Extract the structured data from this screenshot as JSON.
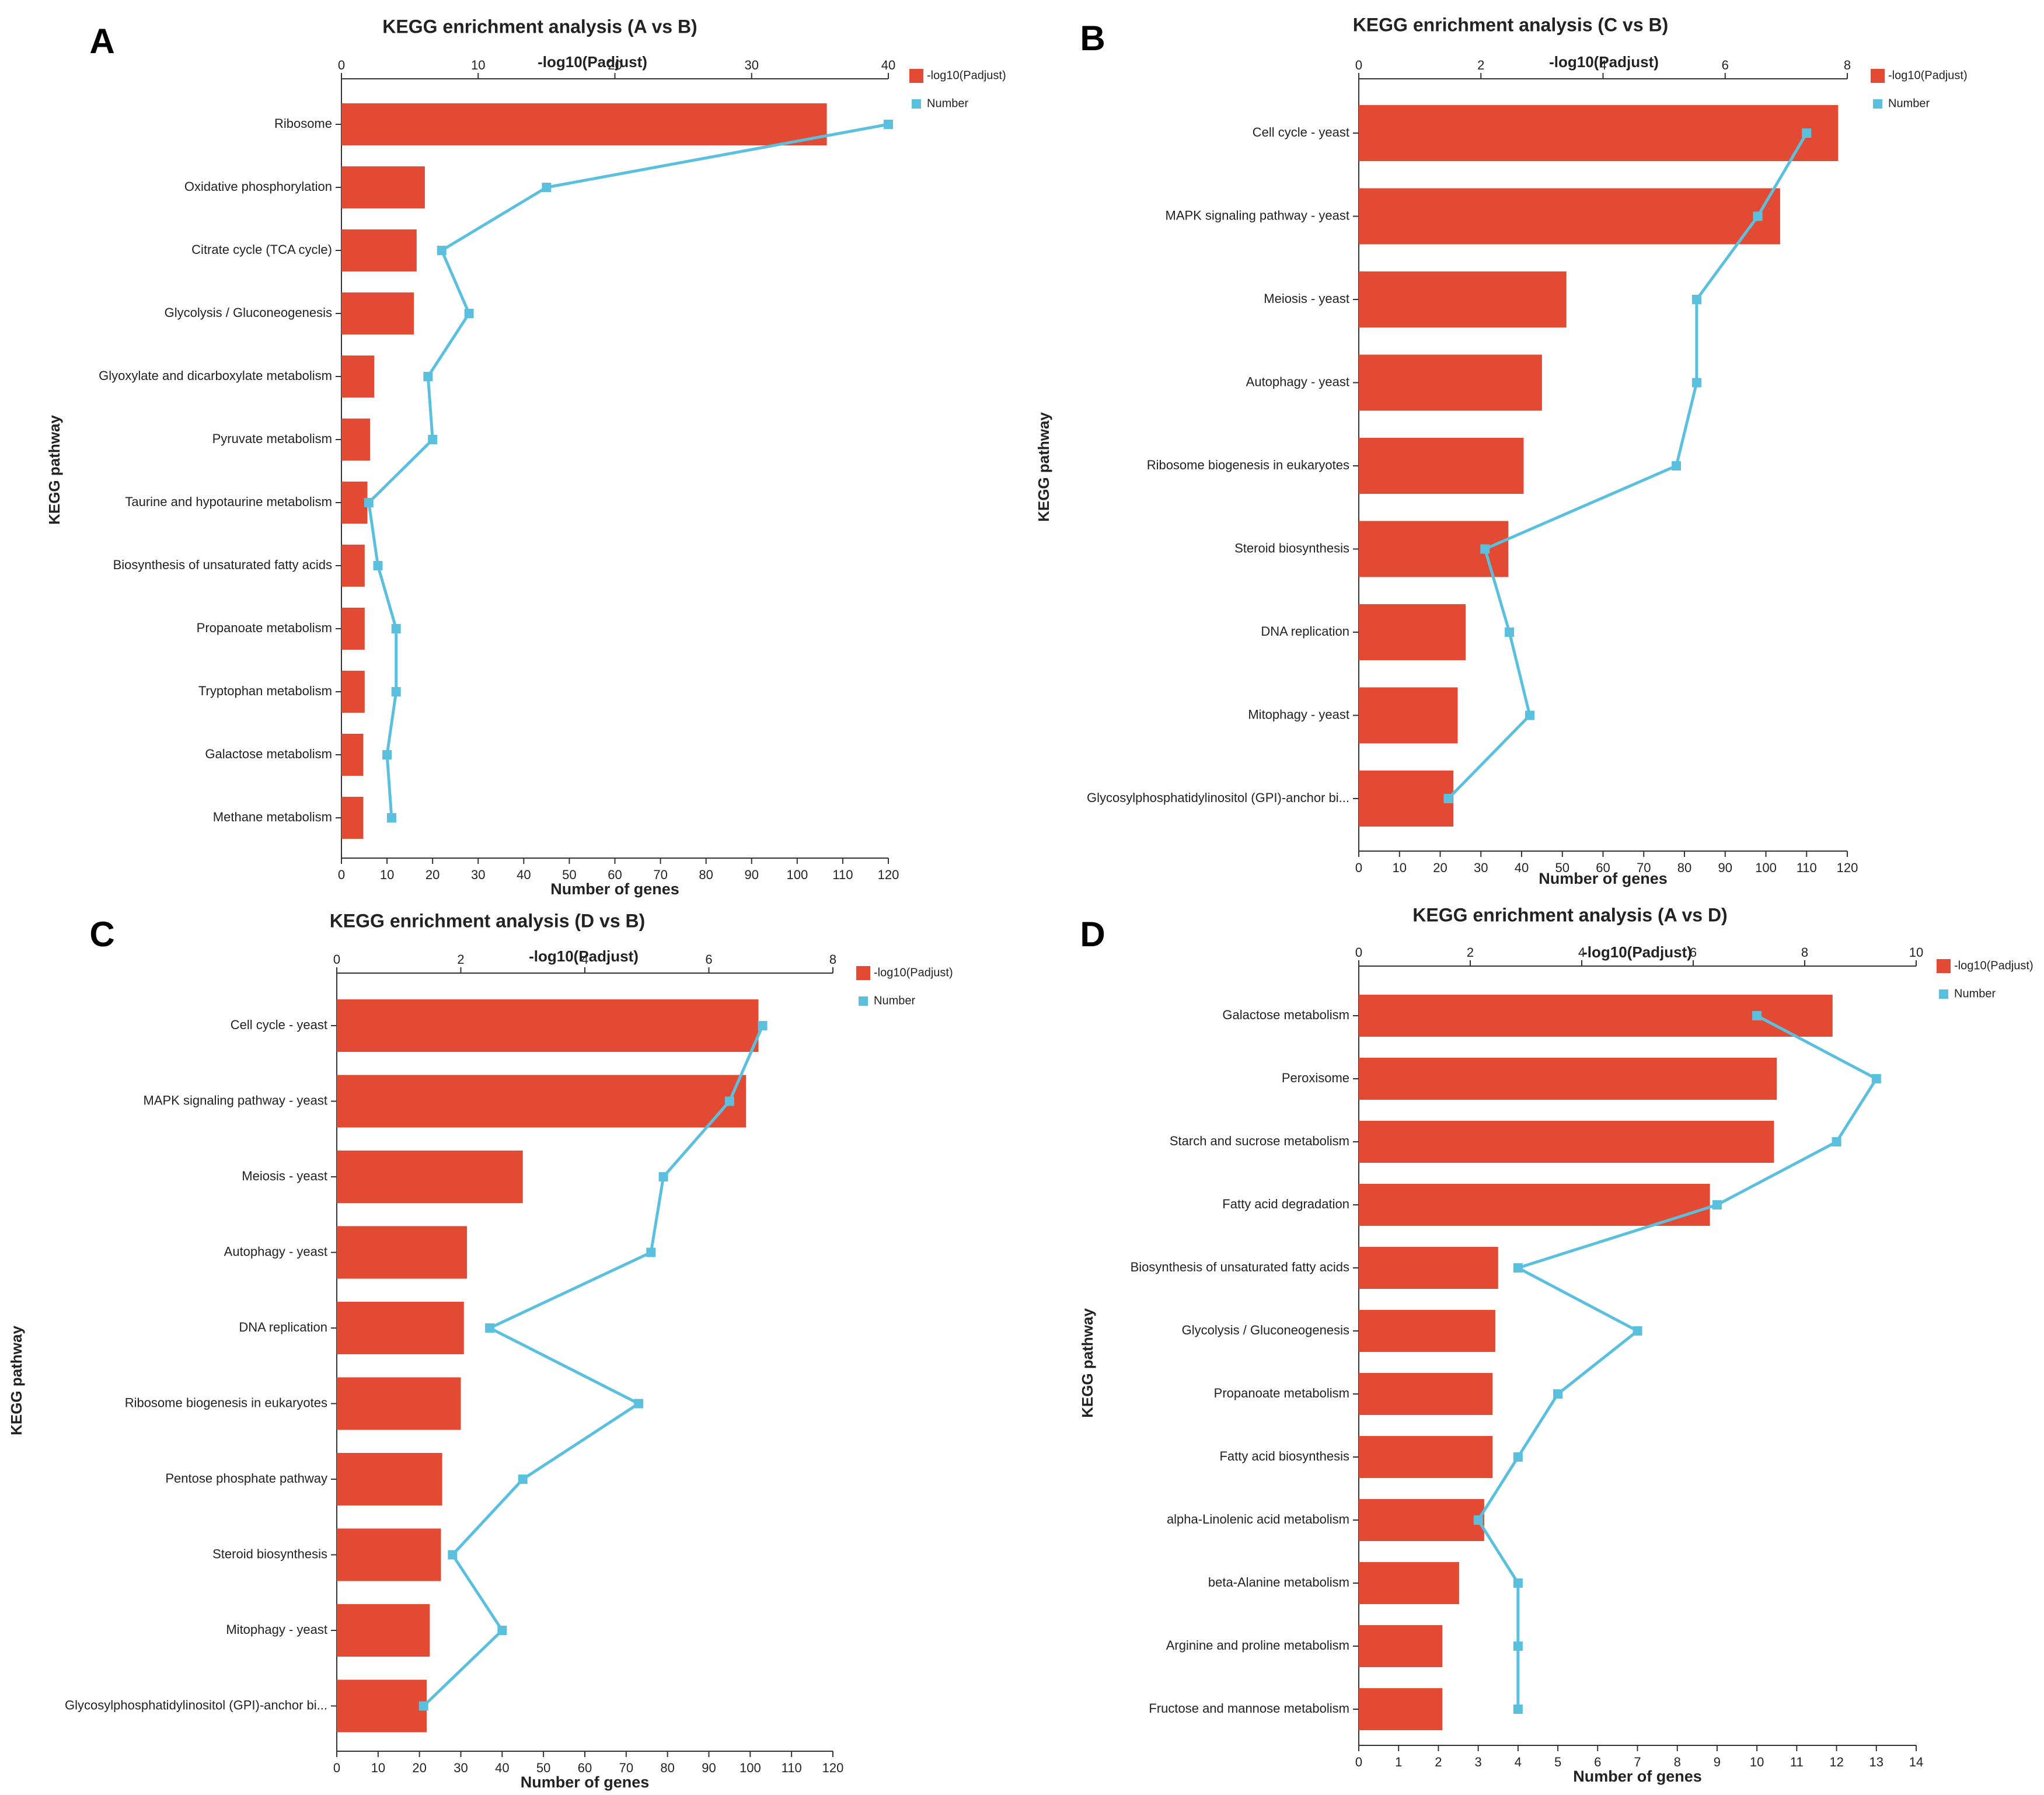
{
  "figure": {
    "colors": {
      "bar": "#e24a33",
      "line": "#5bc0de",
      "axis": "#333333"
    },
    "legend": {
      "bar_label": "-log10(Padjust)",
      "line_label": "Number"
    }
  },
  "chart_data": [
    {
      "panel": "A",
      "type": "bar",
      "title": "KEGG enrichment analysis (A vs B)",
      "top_axis_label": "-log10(Padjust)",
      "xlabel": "Number of genes",
      "ylabel": "KEGG pathway",
      "top_axis_range": [
        0,
        40
      ],
      "top_ticks": [
        0,
        10,
        20,
        30,
        40
      ],
      "bottom_axis_range": [
        0,
        120
      ],
      "bottom_ticks": [
        0,
        10,
        20,
        30,
        40,
        50,
        60,
        70,
        80,
        90,
        100,
        110,
        120
      ],
      "legend_position": "top-right",
      "categories": [
        "Ribosome",
        "Oxidative phosphorylation",
        "Citrate cycle (TCA cycle)",
        "Glycolysis / Gluconeogenesis",
        "Glyoxylate and dicarboxylate metabolism",
        "Pyruvate metabolism",
        "Taurine and hypotaurine metabolism",
        "Biosynthesis of unsaturated fatty acids",
        "Propanoate metabolism",
        "Tryptophan metabolism",
        "Galactose metabolism",
        "Methane metabolism"
      ],
      "series": [
        {
          "name": "-log10(Padjust)",
          "kind": "bar",
          "axis": "top",
          "values": [
            35.5,
            6.1,
            5.5,
            5.3,
            2.4,
            2.1,
            1.9,
            1.7,
            1.7,
            1.7,
            1.6,
            1.6
          ]
        },
        {
          "name": "Number",
          "kind": "line",
          "axis": "bottom",
          "values": [
            120,
            45,
            22,
            28,
            19,
            20,
            6,
            8,
            12,
            12,
            10,
            11
          ]
        }
      ]
    },
    {
      "panel": "B",
      "type": "bar",
      "title": "KEGG enrichment analysis (C vs B)",
      "top_axis_label": "-log10(Padjust)",
      "xlabel": "Number of genes",
      "ylabel": "KEGG pathway",
      "top_axis_range": [
        0,
        8
      ],
      "top_ticks": [
        0,
        2,
        4,
        6,
        8
      ],
      "bottom_axis_range": [
        0,
        120
      ],
      "bottom_ticks": [
        0,
        10,
        20,
        30,
        40,
        50,
        60,
        70,
        80,
        90,
        100,
        110,
        120
      ],
      "legend_position": "top-right",
      "categories": [
        "Cell cycle - yeast",
        "MAPK signaling pathway - yeast",
        "Meiosis - yeast",
        "Autophagy - yeast",
        "Ribosome biogenesis in eukaryotes",
        "Steroid biosynthesis",
        "DNA replication",
        "Mitophagy - yeast",
        "Glycosylphosphatidylinositol (GPI)-anchor bi..."
      ],
      "series": [
        {
          "name": "-log10(Padjust)",
          "kind": "bar",
          "axis": "top",
          "values": [
            7.85,
            6.9,
            3.4,
            3.0,
            2.7,
            2.45,
            1.75,
            1.62,
            1.55
          ]
        },
        {
          "name": "Number",
          "kind": "line",
          "axis": "bottom",
          "values": [
            110,
            98,
            83,
            83,
            78,
            31,
            37,
            42,
            22
          ]
        }
      ]
    },
    {
      "panel": "C",
      "type": "bar",
      "title": "KEGG enrichment analysis (D vs B)",
      "top_axis_label": "-log10(Padjust)",
      "xlabel": "Number of genes",
      "ylabel": "KEGG pathway",
      "top_axis_range": [
        0,
        8
      ],
      "top_ticks": [
        0,
        2,
        4,
        6,
        8
      ],
      "bottom_axis_range": [
        0,
        120
      ],
      "bottom_ticks": [
        0,
        10,
        20,
        30,
        40,
        50,
        60,
        70,
        80,
        90,
        100,
        110,
        120
      ],
      "legend_position": "top-right",
      "categories": [
        "Cell cycle - yeast",
        "MAPK signaling pathway - yeast",
        "Meiosis - yeast",
        "Autophagy - yeast",
        "DNA replication",
        "Ribosome biogenesis in eukaryotes",
        "Pentose phosphate pathway",
        "Steroid biosynthesis",
        "Mitophagy - yeast",
        "Glycosylphosphatidylinositol (GPI)-anchor bi..."
      ],
      "series": [
        {
          "name": "-log10(Padjust)",
          "kind": "bar",
          "axis": "top",
          "values": [
            6.8,
            6.6,
            3.0,
            2.1,
            2.05,
            2.0,
            1.7,
            1.68,
            1.5,
            1.45
          ]
        },
        {
          "name": "Number",
          "kind": "line",
          "axis": "bottom",
          "values": [
            103,
            95,
            79,
            76,
            37,
            73,
            45,
            28,
            40,
            21
          ]
        }
      ]
    },
    {
      "panel": "D",
      "type": "bar",
      "title": "KEGG enrichment analysis (A vs D)",
      "top_axis_label": "-log10(Padjust)",
      "xlabel": "Number of genes",
      "ylabel": "KEGG pathway",
      "top_axis_range": [
        0,
        10
      ],
      "top_ticks": [
        0,
        2,
        4,
        6,
        8,
        10
      ],
      "bottom_axis_range": [
        0,
        14
      ],
      "bottom_ticks": [
        0,
        1,
        2,
        3,
        4,
        5,
        6,
        7,
        8,
        9,
        10,
        11,
        12,
        13,
        14
      ],
      "legend_position": "top-right",
      "categories": [
        "Galactose metabolism",
        "Peroxisome",
        "Starch and sucrose metabolism",
        "Fatty acid degradation",
        "Biosynthesis of unsaturated fatty acids",
        "Glycolysis / Gluconeogenesis",
        "Propanoate metabolism",
        "Fatty acid biosynthesis",
        "alpha-Linolenic acid metabolism",
        "beta-Alanine metabolism",
        "Arginine and proline metabolism",
        "Fructose and mannose metabolism"
      ],
      "series": [
        {
          "name": "-log10(Padjust)",
          "kind": "bar",
          "axis": "top",
          "values": [
            8.5,
            7.5,
            7.45,
            6.3,
            2.5,
            2.45,
            2.4,
            2.4,
            2.25,
            1.8,
            1.5,
            1.5
          ]
        },
        {
          "name": "Number",
          "kind": "line",
          "axis": "bottom",
          "values": [
            10,
            13,
            12,
            9,
            4,
            7,
            5,
            4,
            3,
            4,
            4,
            4
          ]
        }
      ]
    }
  ]
}
